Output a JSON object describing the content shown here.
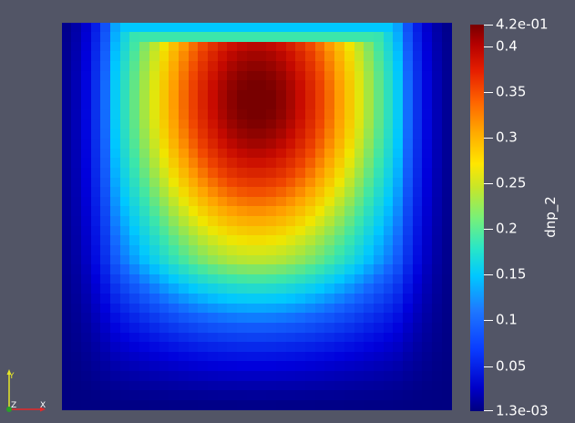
{
  "colorbar": {
    "title": "dnp_2",
    "max_label": "4.2e-01",
    "min_label": "1.3e-03",
    "range": [
      0.0013,
      0.42
    ],
    "ticks": [
      "0.4",
      "0.35",
      "0.3",
      "0.25",
      "0.2",
      "0.15",
      "0.1",
      "0.05"
    ],
    "tick_values": [
      0.4,
      0.35,
      0.3,
      0.25,
      0.2,
      0.15,
      0.1,
      0.05
    ],
    "colormap": "jet"
  },
  "axes_triad": {
    "y_label": "Y",
    "z_label": "Z",
    "x_label": "X",
    "x_color": "#e62828",
    "y_color": "#e6e628",
    "z_color": "#28a028"
  },
  "colors": {
    "background": "#525566"
  }
}
